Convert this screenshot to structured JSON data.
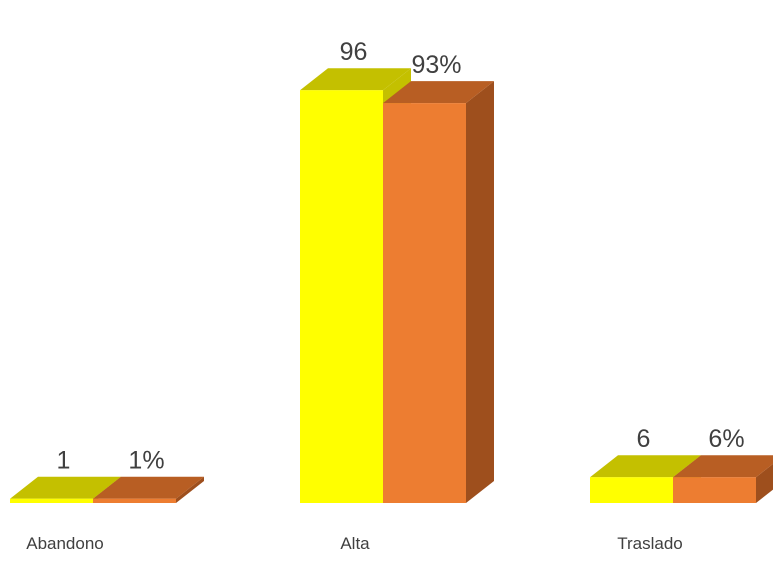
{
  "chart_data": {
    "type": "bar",
    "categories": [
      "Abandono",
      "Alta",
      "Traslado"
    ],
    "series": [
      {
        "values": [
          1,
          96,
          6
        ],
        "labels": [
          "1",
          "96",
          "6"
        ],
        "color": "#FFFF00",
        "top_color": "#C4C000",
        "side_color": "#C4C000"
      },
      {
        "values": [
          1,
          93,
          6
        ],
        "labels": [
          "1%",
          "93%",
          "6%"
        ],
        "color": "#ED7D31",
        "top_color": "#B85E23",
        "side_color": "#9E4F1D"
      }
    ],
    "title": "",
    "xlabel": "",
    "ylabel": "",
    "legend": "none",
    "grid": false,
    "style": "3d-clustered-column"
  }
}
